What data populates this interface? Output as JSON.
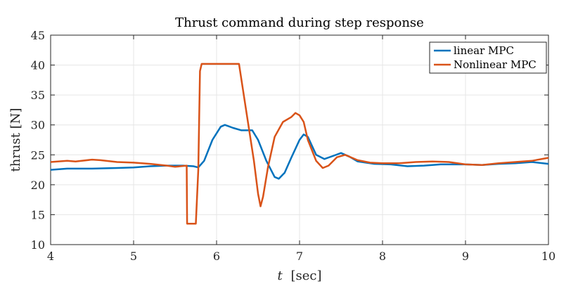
{
  "chart_data": {
    "type": "line",
    "title": "Thrust command during step response",
    "xlabel_var": "t",
    "xlabel_unit": "[sec]",
    "ylabel": "thrust [N]",
    "xlim": [
      4,
      10
    ],
    "ylim": [
      10,
      45
    ],
    "xticks": [
      4,
      5,
      6,
      7,
      8,
      9,
      10
    ],
    "yticks": [
      10,
      15,
      20,
      25,
      30,
      35,
      40,
      45
    ],
    "grid": true,
    "legend_position": "top-right",
    "series": [
      {
        "name": "linear MPC",
        "color": "#0072BD",
        "points": [
          [
            4.0,
            22.5
          ],
          [
            4.2,
            22.7
          ],
          [
            4.5,
            22.7
          ],
          [
            4.8,
            22.8
          ],
          [
            5.0,
            22.9
          ],
          [
            5.2,
            23.1
          ],
          [
            5.4,
            23.2
          ],
          [
            5.6,
            23.2
          ],
          [
            5.72,
            23.1
          ],
          [
            5.78,
            22.9
          ],
          [
            5.85,
            24.0
          ],
          [
            5.95,
            27.5
          ],
          [
            6.05,
            29.7
          ],
          [
            6.1,
            30.0
          ],
          [
            6.2,
            29.5
          ],
          [
            6.3,
            29.1
          ],
          [
            6.43,
            29.1
          ],
          [
            6.5,
            27.5
          ],
          [
            6.6,
            24.0
          ],
          [
            6.7,
            21.3
          ],
          [
            6.75,
            21.0
          ],
          [
            6.82,
            22.0
          ],
          [
            6.9,
            24.5
          ],
          [
            7.0,
            27.5
          ],
          [
            7.05,
            28.4
          ],
          [
            7.1,
            28.0
          ],
          [
            7.2,
            25.0
          ],
          [
            7.3,
            24.3
          ],
          [
            7.4,
            24.8
          ],
          [
            7.5,
            25.3
          ],
          [
            7.6,
            24.7
          ],
          [
            7.7,
            23.9
          ],
          [
            7.9,
            23.5
          ],
          [
            8.1,
            23.4
          ],
          [
            8.3,
            23.1
          ],
          [
            8.5,
            23.2
          ],
          [
            8.7,
            23.4
          ],
          [
            9.0,
            23.4
          ],
          [
            9.2,
            23.3
          ],
          [
            9.4,
            23.5
          ],
          [
            9.6,
            23.6
          ],
          [
            9.8,
            23.8
          ],
          [
            10.0,
            23.5
          ]
        ]
      },
      {
        "name": "Nonlinear MPC",
        "color": "#D95319",
        "points": [
          [
            4.0,
            23.8
          ],
          [
            4.2,
            24.0
          ],
          [
            4.3,
            23.9
          ],
          [
            4.5,
            24.2
          ],
          [
            4.6,
            24.1
          ],
          [
            4.8,
            23.8
          ],
          [
            5.0,
            23.7
          ],
          [
            5.2,
            23.5
          ],
          [
            5.4,
            23.2
          ],
          [
            5.5,
            23.0
          ],
          [
            5.64,
            23.2
          ],
          [
            5.645,
            13.5
          ],
          [
            5.75,
            13.5
          ],
          [
            5.78,
            22.5
          ],
          [
            5.8,
            39.0
          ],
          [
            5.82,
            40.2
          ],
          [
            6.0,
            40.2
          ],
          [
            6.2,
            40.2
          ],
          [
            6.27,
            40.2
          ],
          [
            6.35,
            33.0
          ],
          [
            6.45,
            24.0
          ],
          [
            6.5,
            18.5
          ],
          [
            6.53,
            16.4
          ],
          [
            6.56,
            18.0
          ],
          [
            6.62,
            23.0
          ],
          [
            6.7,
            28.0
          ],
          [
            6.8,
            30.5
          ],
          [
            6.9,
            31.3
          ],
          [
            6.95,
            32.0
          ],
          [
            7.0,
            31.6
          ],
          [
            7.05,
            30.5
          ],
          [
            7.1,
            27.5
          ],
          [
            7.2,
            24.0
          ],
          [
            7.28,
            22.8
          ],
          [
            7.35,
            23.2
          ],
          [
            7.45,
            24.6
          ],
          [
            7.55,
            25.0
          ],
          [
            7.7,
            24.1
          ],
          [
            7.85,
            23.7
          ],
          [
            8.0,
            23.6
          ],
          [
            8.2,
            23.6
          ],
          [
            8.4,
            23.8
          ],
          [
            8.6,
            23.9
          ],
          [
            8.8,
            23.8
          ],
          [
            9.0,
            23.4
          ],
          [
            9.2,
            23.3
          ],
          [
            9.4,
            23.6
          ],
          [
            9.6,
            23.8
          ],
          [
            9.8,
            24.0
          ],
          [
            10.0,
            24.5
          ]
        ]
      }
    ]
  }
}
